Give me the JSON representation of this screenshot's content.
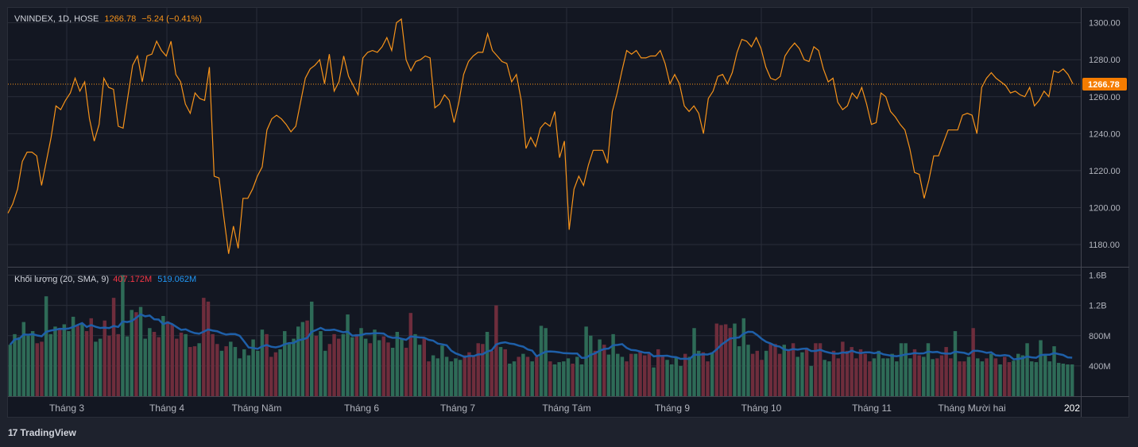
{
  "colors": {
    "background": "#131722",
    "frame": "#1e222d",
    "grid": "#2a2e39",
    "price_line": "#f7931a",
    "last_price_bg": "#f57c00",
    "vol_up": "#2e6b57",
    "vol_down": "#6e2d3c",
    "sma": "#2962ff",
    "sma_line": "#1e5fa8",
    "text": "#b2b5be",
    "orange_text": "#f7931a",
    "red_text": "#f23645",
    "blue_text": "#2196f3"
  },
  "header": {
    "symbol": "VNINDEX, 1D, HOSE",
    "last": "1266.78",
    "change": "−5.24 (−0.41%)"
  },
  "volume_legend": {
    "label": "Khối lượng (20, SMA, 9)",
    "volume": "407.172M",
    "sma": "519.062M"
  },
  "last_price_label": "1266.78",
  "brand": {
    "logo": "17",
    "name": "TradingView"
  },
  "chart_data": [
    {
      "type": "line",
      "title": "VNINDEX, 1D, HOSE",
      "ylim": [
        1168,
        1308
      ],
      "y_ticks": [
        "1180.00",
        "1200.00",
        "1220.00",
        "1240.00",
        "1260.00",
        "1280.00",
        "1300.00"
      ],
      "x_ticks": [
        "Tháng 3",
        "Tháng 4",
        "Tháng Năm",
        "Tháng 6",
        "Tháng 7",
        "Tháng Tám",
        "Tháng 9",
        "Tháng 10",
        "Tháng 11",
        "Tháng Mười hai",
        "202"
      ],
      "last_value": 1266.78,
      "values": [
        1197,
        1202,
        1210,
        1225,
        1230,
        1230,
        1228,
        1212,
        1225,
        1238,
        1255,
        1253,
        1258,
        1262,
        1270,
        1263,
        1268,
        1248,
        1236,
        1245,
        1270,
        1265,
        1264,
        1244,
        1243,
        1260,
        1277,
        1282,
        1268,
        1282,
        1283,
        1290,
        1285,
        1282,
        1290,
        1272,
        1268,
        1256,
        1251,
        1262,
        1259,
        1258,
        1276,
        1217,
        1216,
        1195,
        1175,
        1190,
        1178,
        1205,
        1205,
        1210,
        1217,
        1222,
        1242,
        1248,
        1250,
        1248,
        1245,
        1241,
        1244,
        1257,
        1270,
        1275,
        1277,
        1280,
        1267,
        1283,
        1263,
        1268,
        1282,
        1271,
        1266,
        1261,
        1281,
        1284,
        1285,
        1284,
        1287,
        1292,
        1285,
        1300,
        1302,
        1280,
        1274,
        1279,
        1280,
        1282,
        1281,
        1254,
        1256,
        1261,
        1258,
        1246,
        1257,
        1272,
        1279,
        1282,
        1284,
        1284,
        1294,
        1285,
        1282,
        1279,
        1278,
        1268,
        1272,
        1258,
        1232,
        1238,
        1233,
        1243,
        1246,
        1244,
        1252,
        1227,
        1236,
        1188,
        1210,
        1217,
        1212,
        1223,
        1231,
        1231,
        1231,
        1224,
        1252,
        1262,
        1274,
        1285,
        1283,
        1285,
        1281,
        1281,
        1282,
        1282,
        1285,
        1278,
        1267,
        1272,
        1267,
        1255,
        1252,
        1255,
        1251,
        1240,
        1259,
        1263,
        1271,
        1272,
        1267,
        1273,
        1284,
        1291,
        1290,
        1287,
        1292,
        1286,
        1276,
        1270,
        1269,
        1271,
        1282,
        1286,
        1289,
        1286,
        1280,
        1279,
        1287,
        1285,
        1275,
        1268,
        1270,
        1257,
        1253,
        1255,
        1262,
        1259,
        1265,
        1256,
        1245,
        1246,
        1262,
        1260,
        1252,
        1249,
        1245,
        1242,
        1232,
        1219,
        1218,
        1205,
        1215,
        1228,
        1228,
        1235,
        1242,
        1242,
        1242,
        1250,
        1251,
        1250,
        1240,
        1265,
        1270,
        1273,
        1270,
        1268,
        1266,
        1262,
        1263,
        1261,
        1260,
        1265,
        1255,
        1258,
        1263,
        1260,
        1274,
        1273,
        1275,
        1272,
        1267
      ]
    },
    {
      "type": "bar",
      "title": "Khối lượng (20, SMA, 9)",
      "ylim": [
        0,
        1700
      ],
      "y_ticks": [
        "400M",
        "800M",
        "1.2B",
        "1.6B"
      ],
      "y_tick_values": [
        400,
        800,
        1200,
        1600
      ],
      "unit": "M",
      "values": [
        680,
        820,
        780,
        980,
        800,
        860,
        700,
        720,
        1320,
        820,
        920,
        900,
        950,
        860,
        1050,
        930,
        950,
        860,
        1030,
        720,
        760,
        1000,
        800,
        1300,
        820,
        1600,
        790,
        1140,
        1110,
        1180,
        760,
        900,
        850,
        780,
        1060,
        990,
        950,
        760,
        840,
        820,
        650,
        660,
        700,
        1300,
        1250,
        820,
        690,
        600,
        660,
        720,
        650,
        500,
        620,
        540,
        750,
        600,
        880,
        820,
        520,
        580,
        620,
        860,
        690,
        760,
        920,
        980,
        1000,
        1250,
        800,
        860,
        600,
        690,
        820,
        760,
        820,
        1080,
        780,
        820,
        900,
        760,
        700,
        880,
        740,
        790,
        710,
        640,
        850,
        760,
        640,
        1100,
        820,
        680,
        760,
        460,
        540,
        500,
        670,
        520,
        460,
        500,
        480,
        540,
        580,
        520,
        700,
        690,
        850,
        600,
        1200,
        650,
        620,
        430,
        460,
        520,
        560,
        520,
        460,
        520,
        930,
        900,
        460,
        420,
        450,
        460,
        500,
        430,
        520,
        420,
        920,
        800,
        600,
        750,
        680,
        550,
        820,
        560,
        520,
        460,
        560,
        560,
        600,
        540,
        560,
        380,
        620,
        520,
        480,
        420,
        520,
        400,
        560,
        520,
        900,
        600,
        580,
        460,
        580,
        960,
        940,
        950,
        900,
        960,
        660,
        1030,
        680,
        560,
        600,
        480,
        600,
        700,
        690,
        560,
        680,
        600,
        700,
        520,
        580,
        640,
        400,
        700,
        700,
        480,
        460,
        600,
        500,
        720,
        600,
        650,
        500,
        620,
        560,
        460,
        500,
        600,
        500,
        500,
        560,
        460,
        700,
        700,
        500,
        620,
        540,
        520,
        700,
        490,
        500,
        540,
        650,
        500,
        860,
        460,
        460,
        520,
        900,
        500,
        460,
        500,
        560,
        500,
        420,
        520,
        450,
        470,
        560,
        540,
        700,
        460,
        450,
        740,
        560,
        460,
        660,
        440,
        430,
        420,
        420
      ]
    }
  ]
}
